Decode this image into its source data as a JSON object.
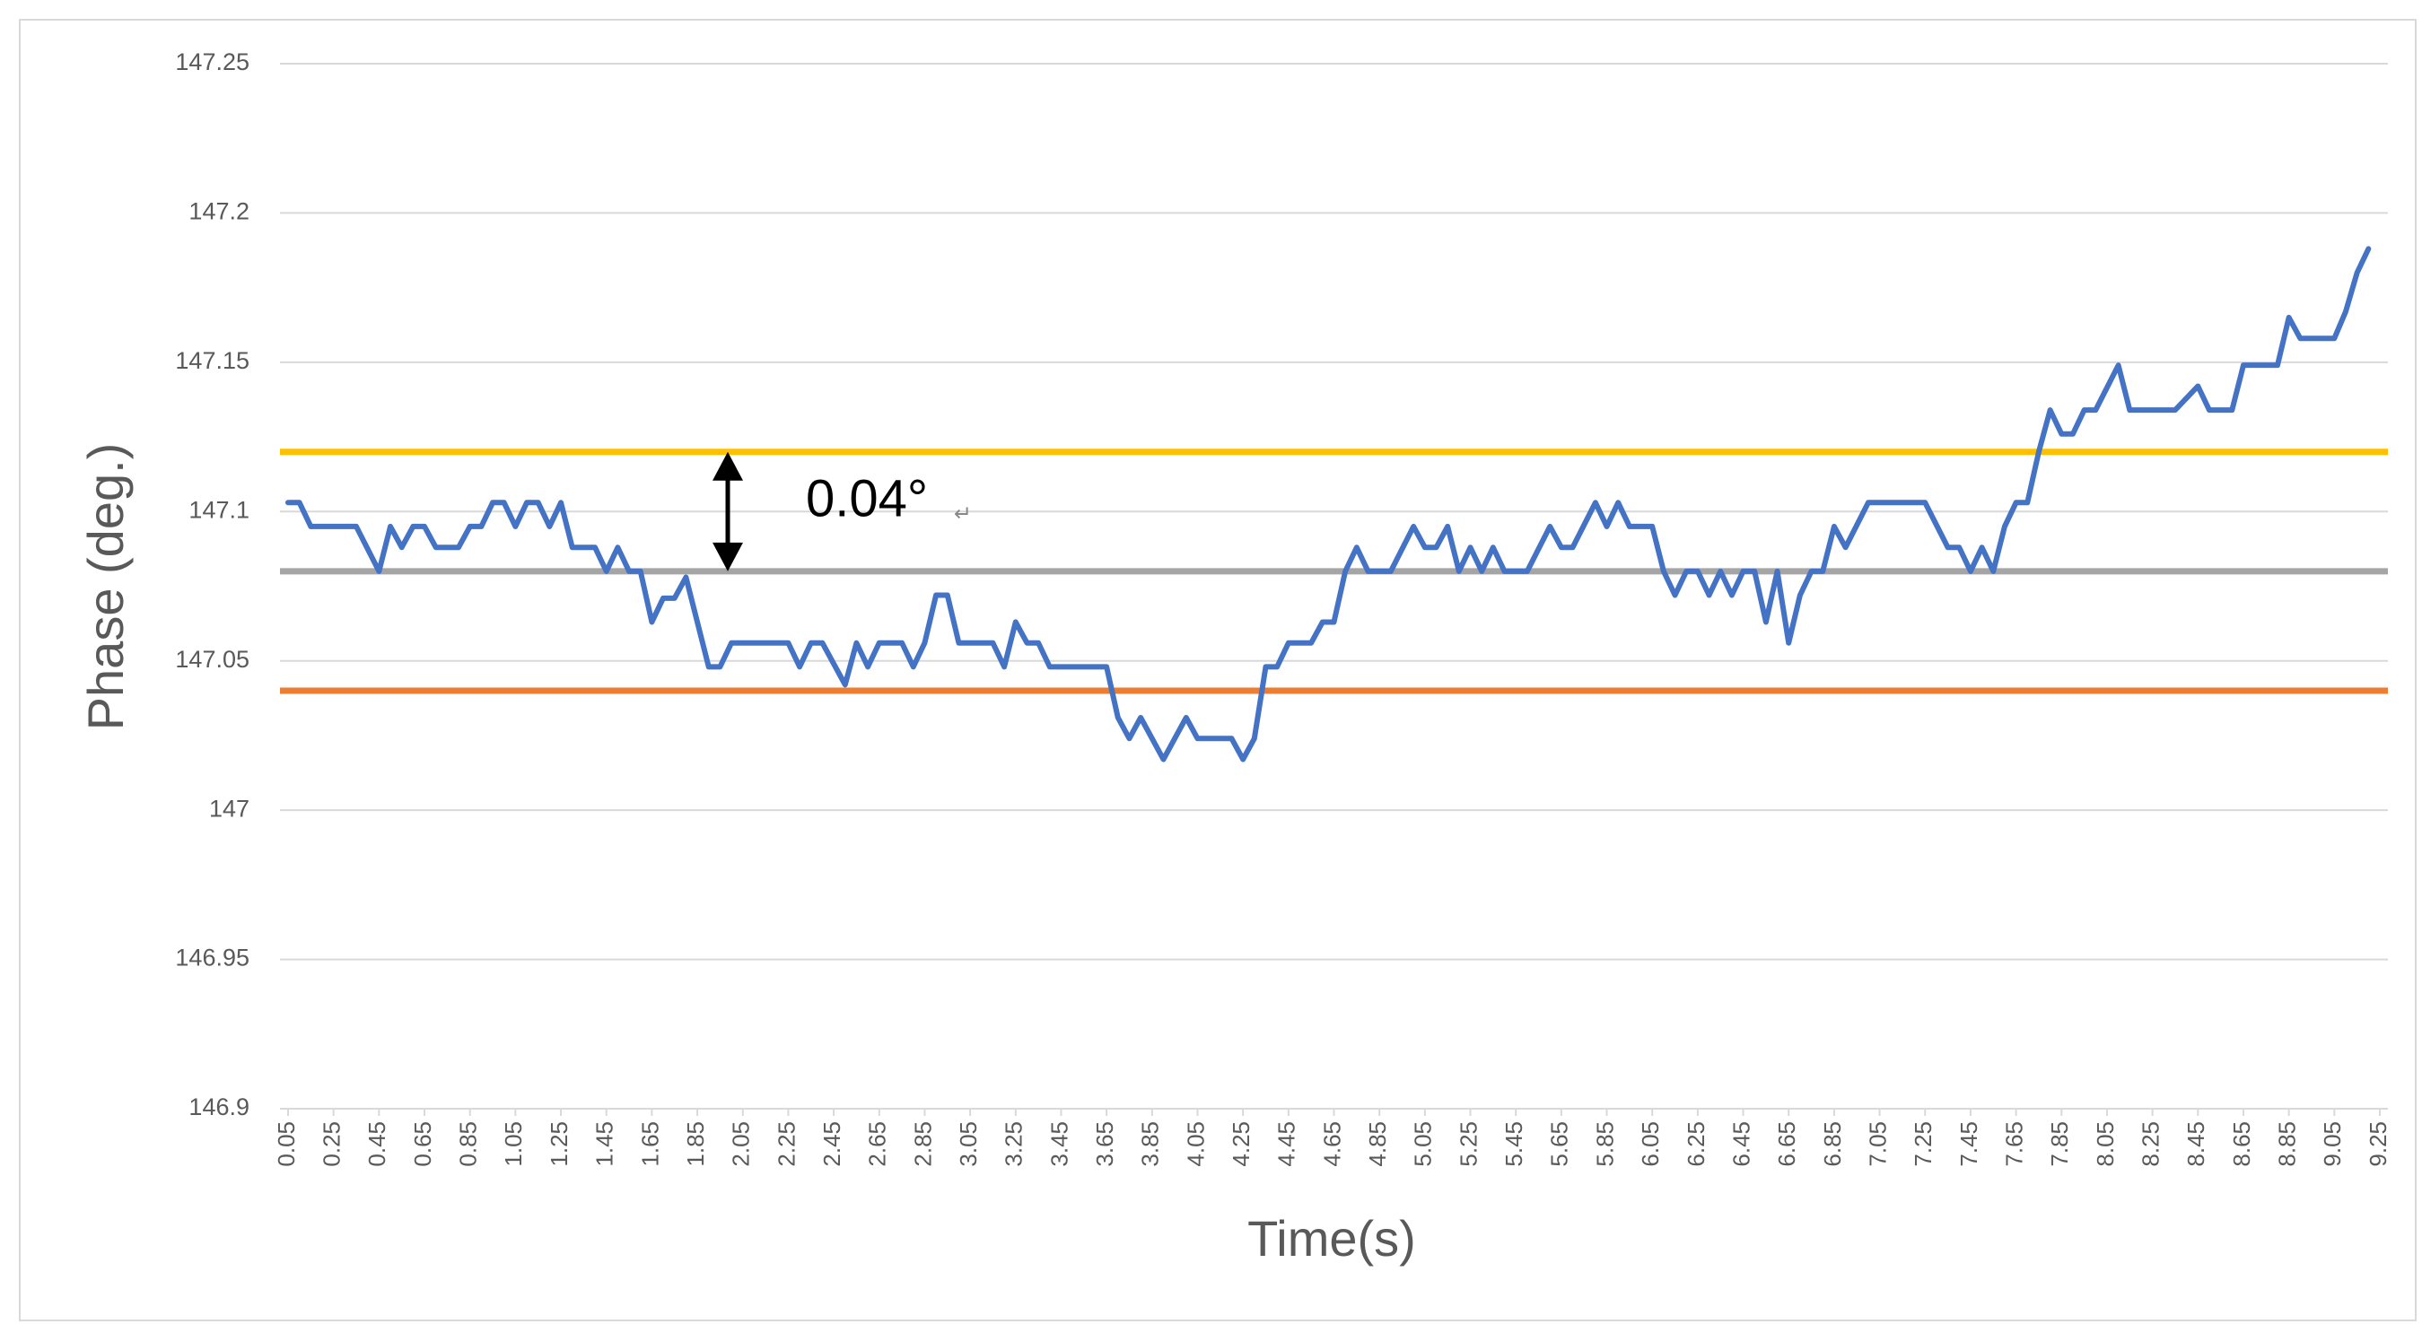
{
  "chart_data": {
    "type": "line",
    "x_label": "Time(s)",
    "y_label": "Phase (deg.)",
    "annotations": [
      "0.04°",
      "↵"
    ],
    "xlim": [
      0.05,
      9.25
    ],
    "xticks": [
      0.05,
      0.25,
      0.45,
      0.65,
      0.85,
      1.05,
      1.25,
      1.45,
      1.65,
      1.85,
      2.05,
      2.25,
      2.45,
      2.65,
      2.85,
      3.05,
      3.25,
      3.45,
      3.65,
      3.85,
      4.05,
      4.25,
      4.45,
      4.65,
      4.85,
      5.05,
      5.25,
      5.45,
      5.65,
      5.85,
      6.05,
      6.25,
      6.45,
      6.65,
      6.85,
      7.05,
      7.25,
      7.45,
      7.65,
      7.85,
      8.05,
      8.25,
      8.45,
      8.65,
      8.85,
      9.05,
      9.25
    ],
    "ylim": [
      146.9,
      147.25
    ],
    "yticks": [
      146.9,
      146.95,
      147,
      147.05,
      147.1,
      147.15,
      147.2,
      147.25
    ],
    "grid": true,
    "reference_lines": [
      {
        "value": 147.12,
        "color": "#ffc000"
      },
      {
        "value": 147.08,
        "color": "#a5a5a5"
      },
      {
        "value": 147.04,
        "color": "#ed7d31"
      }
    ],
    "series": [
      {
        "color": "#4472c4",
        "x": [
          0.05,
          0.1,
          0.15,
          0.35,
          0.45,
          0.5,
          0.55,
          0.6,
          0.65,
          0.7,
          0.8,
          0.85,
          0.9,
          0.95,
          1.0,
          1.05,
          1.1,
          1.15,
          1.2,
          1.25,
          1.3,
          1.4,
          1.45,
          1.5,
          1.55,
          1.6,
          1.65,
          1.7,
          1.75,
          1.8,
          1.9,
          1.95,
          2.0,
          2.25,
          2.3,
          2.35,
          2.4,
          2.5,
          2.55,
          2.6,
          2.65,
          2.75,
          2.8,
          2.85,
          2.9,
          2.95,
          3.0,
          3.15,
          3.2,
          3.25,
          3.3,
          3.35,
          3.4,
          3.65,
          3.7,
          3.75,
          3.8,
          3.9,
          4.0,
          4.05,
          4.2,
          4.25,
          4.3,
          4.35,
          4.4,
          4.45,
          4.55,
          4.6,
          4.65,
          4.7,
          4.75,
          4.8,
          4.9,
          5.0,
          5.05,
          5.1,
          5.15,
          5.2,
          5.25,
          5.3,
          5.35,
          5.4,
          5.5,
          5.6,
          5.65,
          5.7,
          5.8,
          5.85,
          5.9,
          5.95,
          6.05,
          6.1,
          6.15,
          6.2,
          6.25,
          6.3,
          6.35,
          6.4,
          6.45,
          6.5,
          6.55,
          6.6,
          6.65,
          6.7,
          6.75,
          6.8,
          6.85,
          6.9,
          7.0,
          7.25,
          7.35,
          7.4,
          7.45,
          7.5,
          7.55,
          7.6,
          7.65,
          7.7,
          7.75,
          7.8,
          7.85,
          7.9,
          7.95,
          8.0,
          8.1,
          8.15,
          8.35,
          8.45,
          8.5,
          8.6,
          8.65,
          8.8,
          8.85,
          8.9,
          9.05,
          9.1,
          9.15,
          9.2
        ],
        "values": [
          147.103,
          147.103,
          147.095,
          147.095,
          147.08,
          147.095,
          147.088,
          147.095,
          147.095,
          147.088,
          147.088,
          147.095,
          147.095,
          147.103,
          147.103,
          147.095,
          147.103,
          147.103,
          147.095,
          147.103,
          147.088,
          147.088,
          147.08,
          147.088,
          147.08,
          147.08,
          147.063,
          147.071,
          147.071,
          147.078,
          147.048,
          147.048,
          147.056,
          147.056,
          147.048,
          147.056,
          147.056,
          147.042,
          147.056,
          147.048,
          147.056,
          147.056,
          147.048,
          147.056,
          147.072,
          147.072,
          147.056,
          147.056,
          147.048,
          147.063,
          147.056,
          147.056,
          147.048,
          147.048,
          147.031,
          147.024,
          147.031,
          147.017,
          147.031,
          147.024,
          147.024,
          147.017,
          147.024,
          147.048,
          147.048,
          147.056,
          147.056,
          147.063,
          147.063,
          147.08,
          147.088,
          147.08,
          147.08,
          147.095,
          147.088,
          147.088,
          147.095,
          147.08,
          147.088,
          147.08,
          147.088,
          147.08,
          147.08,
          147.095,
          147.088,
          147.088,
          147.103,
          147.095,
          147.103,
          147.095,
          147.095,
          147.08,
          147.072,
          147.08,
          147.08,
          147.072,
          147.08,
          147.072,
          147.08,
          147.08,
          147.063,
          147.08,
          147.056,
          147.072,
          147.08,
          147.08,
          147.095,
          147.088,
          147.103,
          147.103,
          147.088,
          147.088,
          147.08,
          147.088,
          147.08,
          147.095,
          147.103,
          147.103,
          147.12,
          147.134,
          147.126,
          147.126,
          147.134,
          147.134,
          147.149,
          147.134,
          147.134,
          147.142,
          147.134,
          147.134,
          147.149,
          147.149,
          147.165,
          147.158,
          147.158,
          147.167,
          147.18,
          147.188
        ]
      }
    ]
  }
}
